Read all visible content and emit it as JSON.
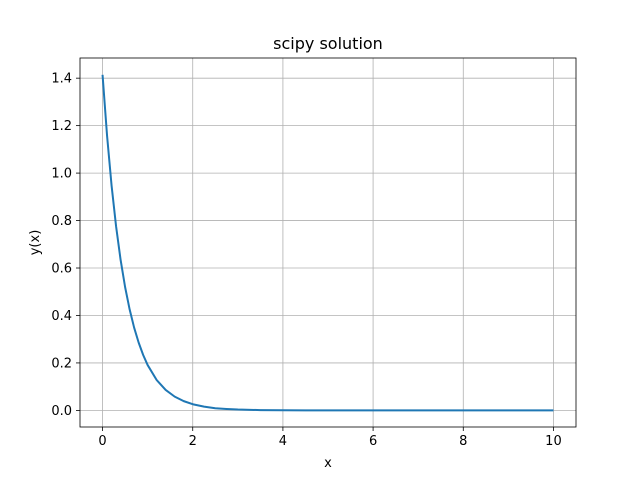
{
  "chart_data": {
    "type": "line",
    "title": "scipy solution",
    "xlabel": "x",
    "ylabel": "y(x)",
    "xlim": [
      -0.5,
      10.5
    ],
    "ylim": [
      -0.07,
      1.485
    ],
    "xticks": [
      0,
      2,
      4,
      6,
      8,
      10
    ],
    "xtick_labels": [
      "0",
      "2",
      "4",
      "6",
      "8",
      "10"
    ],
    "yticks": [
      0.0,
      0.2,
      0.4,
      0.6,
      0.8,
      1.0,
      1.2,
      1.4
    ],
    "ytick_labels": [
      "0.0",
      "0.2",
      "0.4",
      "0.6",
      "0.8",
      "1.0",
      "1.2",
      "1.4"
    ],
    "grid": true,
    "series": [
      {
        "color": "#1f77b4",
        "x": [
          0,
          0.1,
          0.2,
          0.3,
          0.4,
          0.5,
          0.6,
          0.7,
          0.8,
          0.9,
          1.0,
          1.2,
          1.4,
          1.6,
          1.8,
          2.0,
          2.25,
          2.5,
          2.75,
          3.0,
          3.5,
          4.0,
          4.5,
          5.0,
          6.0,
          7.0,
          8.0,
          9.0,
          10.0
        ],
        "y": [
          1.414,
          1.158,
          0.948,
          0.776,
          0.635,
          0.52,
          0.426,
          0.349,
          0.286,
          0.234,
          0.191,
          0.128,
          0.086,
          0.058,
          0.039,
          0.026,
          0.016,
          0.009,
          0.006,
          0.0035,
          0.0013,
          0.0005,
          0.0002,
          0.0001,
          0.0,
          0.0,
          0.0,
          0.0,
          0.0
        ]
      }
    ]
  }
}
